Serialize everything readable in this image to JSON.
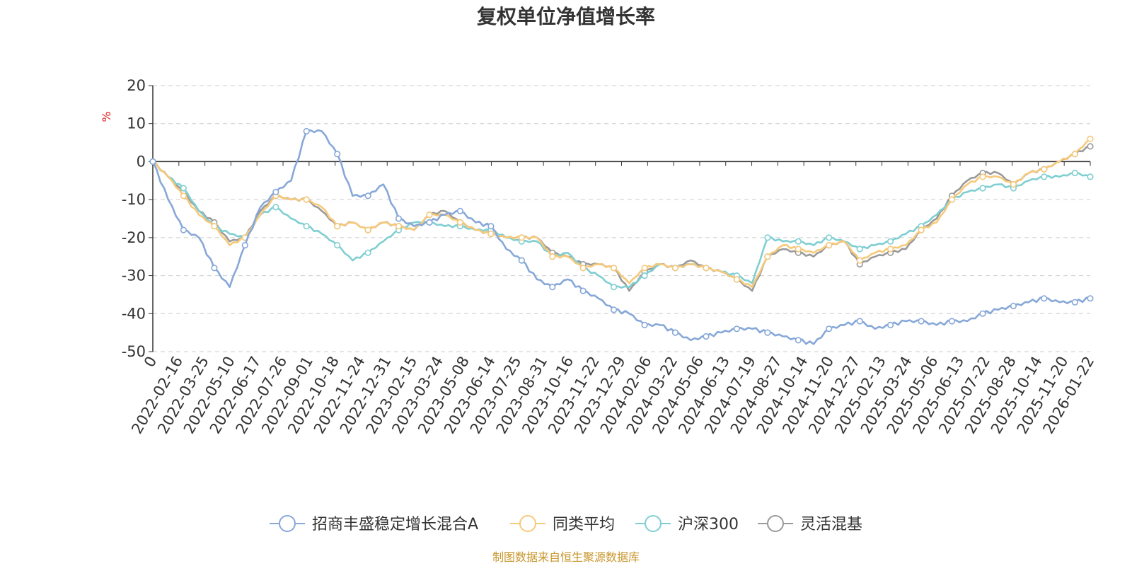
{
  "chart_data": {
    "type": "line",
    "title": "复权单位净值增长率",
    "y_unit": "%",
    "ylim": [
      -50,
      20
    ],
    "y_ticks": [
      20,
      10,
      0,
      -10,
      -20,
      -30,
      -40,
      -50
    ],
    "x_origin_label": "0",
    "x_tick_labels": [
      "2022-02-16",
      "2022-03-25",
      "2022-05-10",
      "2022-06-17",
      "2022-07-26",
      "2022-09-01",
      "2022-10-18",
      "2022-11-24",
      "2022-12-31",
      "2023-02-15",
      "2023-03-24",
      "2023-05-08",
      "2023-06-14",
      "2023-07-25",
      "2023-08-31",
      "2023-10-16",
      "2023-11-22",
      "2023-12-29",
      "2024-02-06",
      "2024-03-22",
      "2024-05-06",
      "2024-06-13",
      "2024-07-19",
      "2024-08-27",
      "2024-10-14",
      "2024-11-20",
      "2024-12-27",
      "2025-02-13",
      "2025-03-24",
      "2025-05-06",
      "2025-06-13",
      "2025-07-22",
      "2025-08-28",
      "2025-10-14",
      "2025-11-20",
      "2026-01-22"
    ],
    "grid": true,
    "legend_position": "bottom",
    "series": [
      {
        "name": "招商丰盛稳定增长混合A",
        "color": "#87a8d8",
        "values": [
          0,
          -10,
          -18,
          -20,
          -28,
          -33,
          -22,
          -12,
          -8,
          -5,
          8,
          8,
          2,
          -9,
          -9,
          -6,
          -15,
          -17,
          -16,
          -14,
          -13,
          -16,
          -17,
          -23,
          -26,
          -31,
          -33,
          -31,
          -34,
          -36,
          -39,
          -40,
          -43,
          -43,
          -45,
          -47,
          -46,
          -45,
          -44,
          -44,
          -45,
          -46,
          -47,
          -48,
          -44,
          -43,
          -42,
          -44,
          -43,
          -42,
          -42,
          -43,
          -42,
          -42,
          -40,
          -39,
          -38,
          -37,
          -36,
          -37,
          -37,
          -36
        ]
      },
      {
        "name": "同类平均",
        "color": "#f7c97a",
        "values": [
          0,
          -4,
          -9,
          -14,
          -17,
          -22,
          -20,
          -14,
          -9,
          -10,
          -10,
          -12,
          -17,
          -16,
          -18,
          -16,
          -17,
          -18,
          -14,
          -14,
          -16,
          -18,
          -19,
          -20,
          -20,
          -20,
          -25,
          -25,
          -28,
          -27,
          -28,
          -32,
          -28,
          -27,
          -28,
          -27,
          -28,
          -29,
          -31,
          -33,
          -25,
          -22,
          -23,
          -24,
          -22,
          -21,
          -26,
          -24,
          -23,
          -22,
          -18,
          -16,
          -10,
          -6,
          -4,
          -4,
          -6,
          -3,
          -2,
          0,
          2,
          6
        ]
      },
      {
        "name": "沪深300",
        "color": "#7fcfd2",
        "values": [
          0,
          -4,
          -7,
          -13,
          -17,
          -19,
          -20,
          -14,
          -12,
          -15,
          -17,
          -19,
          -22,
          -26,
          -24,
          -21,
          -18,
          -16,
          -16,
          -17,
          -17,
          -18,
          -18,
          -20,
          -21,
          -21,
          -25,
          -24,
          -28,
          -30,
          -33,
          -33,
          -30,
          -27,
          -28,
          -27,
          -28,
          -29,
          -30,
          -32,
          -20,
          -21,
          -21,
          -22,
          -20,
          -21,
          -23,
          -22,
          -21,
          -19,
          -17,
          -14,
          -10,
          -8,
          -7,
          -6,
          -7,
          -5,
          -4,
          -4,
          -3,
          -4
        ]
      },
      {
        "name": "灵活混基",
        "color": "#9a9a9a",
        "values": [
          0,
          -4,
          -8,
          -13,
          -16,
          -21,
          -20,
          -13,
          -9,
          -10,
          -10,
          -13,
          -17,
          -16,
          -18,
          -16,
          -17,
          -18,
          -14,
          -13,
          -16,
          -18,
          -19,
          -20,
          -20,
          -20,
          -24,
          -25,
          -27,
          -27,
          -28,
          -34,
          -29,
          -27,
          -28,
          -26,
          -28,
          -29,
          -31,
          -34,
          -25,
          -23,
          -24,
          -25,
          -22,
          -21,
          -27,
          -25,
          -24,
          -23,
          -18,
          -15,
          -9,
          -5,
          -3,
          -3,
          -6,
          -3,
          -2,
          0,
          2,
          4
        ]
      }
    ]
  },
  "footer": {
    "source": "制图数据来自恒生聚源数据库"
  }
}
